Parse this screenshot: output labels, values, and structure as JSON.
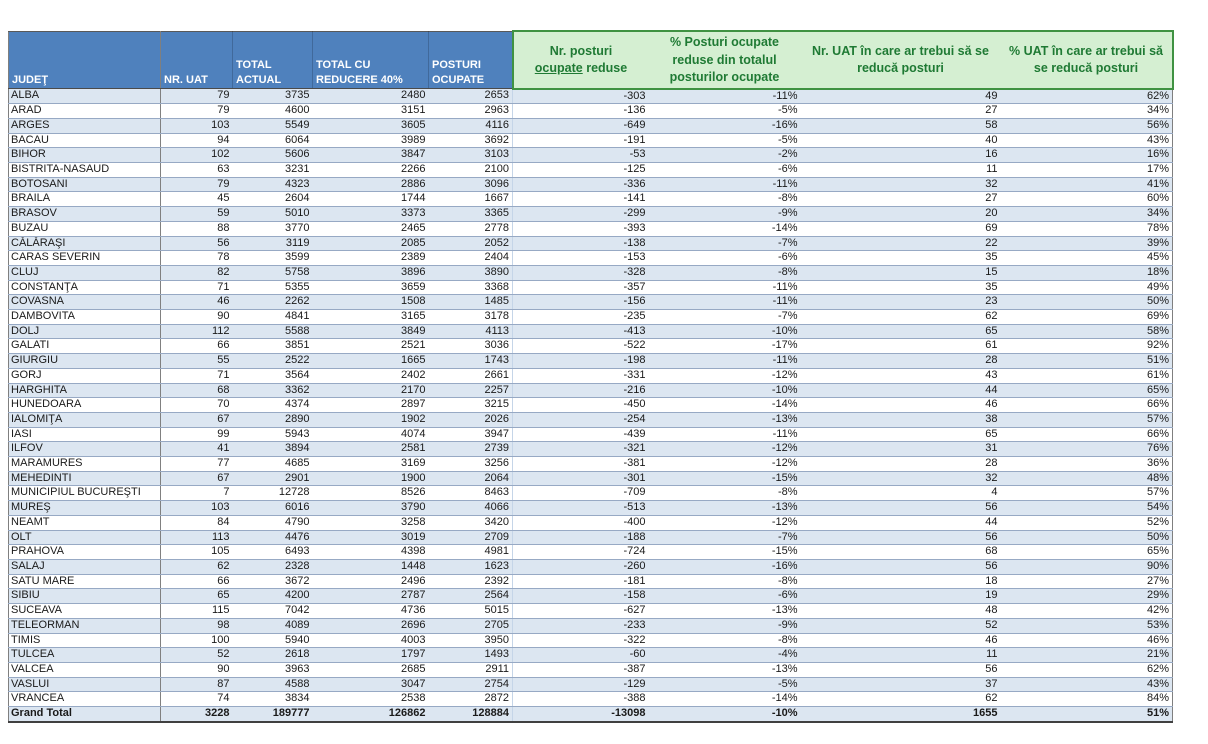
{
  "header": {
    "judet": "JUDEŢ",
    "nr_uat": "NR. UAT",
    "total_actual": "TOTAL\nACTUAL",
    "total_cu_reducere": "TOTAL CU\nREDUCERE 40%",
    "posturi_ocupate": "POSTURI\nOCUPATE",
    "nr_posturi_reduse": {
      "line1": "Nr. posturi",
      "underlined": "ocupate",
      "rest": "reduse"
    },
    "pct_posturi_reduse": "% Posturi ocupate reduse din totalul posturilor ocupate",
    "nr_uat_reduce": "Nr. UAT în care ar trebui să se reducă posturi",
    "pct_uat_reduce": "% UAT în care ar trebui să se reducă posturi"
  },
  "colors": {
    "header_blue": "#4F81BD",
    "stripe_blue": "#DCE6F1",
    "green_background": "#D5EFD2",
    "green_text": "#1F7A34",
    "green_border": "#3F9242"
  },
  "rows": [
    [
      "ALBA",
      "79",
      "3735",
      "2480",
      "2653",
      "-303",
      "-11%",
      "49",
      "62%"
    ],
    [
      "ARAD",
      "79",
      "4600",
      "3151",
      "2963",
      "-136",
      "-5%",
      "27",
      "34%"
    ],
    [
      "ARGES",
      "103",
      "5549",
      "3605",
      "4116",
      "-649",
      "-16%",
      "58",
      "56%"
    ],
    [
      "BACAU",
      "94",
      "6064",
      "3989",
      "3692",
      "-191",
      "-5%",
      "40",
      "43%"
    ],
    [
      "BIHOR",
      "102",
      "5606",
      "3847",
      "3103",
      "-53",
      "-2%",
      "16",
      "16%"
    ],
    [
      "BISTRITA-NASAUD",
      "63",
      "3231",
      "2266",
      "2100",
      "-125",
      "-6%",
      "11",
      "17%"
    ],
    [
      "BOTOSANI",
      "79",
      "4323",
      "2886",
      "3096",
      "-336",
      "-11%",
      "32",
      "41%"
    ],
    [
      "BRAILA",
      "45",
      "2604",
      "1744",
      "1667",
      "-141",
      "-8%",
      "27",
      "60%"
    ],
    [
      "BRASOV",
      "59",
      "5010",
      "3373",
      "3365",
      "-299",
      "-9%",
      "20",
      "34%"
    ],
    [
      "BUZAU",
      "88",
      "3770",
      "2465",
      "2778",
      "-393",
      "-14%",
      "69",
      "78%"
    ],
    [
      "CĂLĂRAŞI",
      "56",
      "3119",
      "2085",
      "2052",
      "-138",
      "-7%",
      "22",
      "39%"
    ],
    [
      "CARAS SEVERIN",
      "78",
      "3599",
      "2389",
      "2404",
      "-153",
      "-6%",
      "35",
      "45%"
    ],
    [
      "CLUJ",
      "82",
      "5758",
      "3896",
      "3890",
      "-328",
      "-8%",
      "15",
      "18%"
    ],
    [
      "CONSTANŢA",
      "71",
      "5355",
      "3659",
      "3368",
      "-357",
      "-11%",
      "35",
      "49%"
    ],
    [
      "COVASNA",
      "46",
      "2262",
      "1508",
      "1485",
      "-156",
      "-11%",
      "23",
      "50%"
    ],
    [
      "DAMBOVITA",
      "90",
      "4841",
      "3165",
      "3178",
      "-235",
      "-7%",
      "62",
      "69%"
    ],
    [
      "DOLJ",
      "112",
      "5588",
      "3849",
      "4113",
      "-413",
      "-10%",
      "65",
      "58%"
    ],
    [
      "GALATI",
      "66",
      "3851",
      "2521",
      "3036",
      "-522",
      "-17%",
      "61",
      "92%"
    ],
    [
      "GIURGIU",
      "55",
      "2522",
      "1665",
      "1743",
      "-198",
      "-11%",
      "28",
      "51%"
    ],
    [
      "GORJ",
      "71",
      "3564",
      "2402",
      "2661",
      "-331",
      "-12%",
      "43",
      "61%"
    ],
    [
      "HARGHITA",
      "68",
      "3362",
      "2170",
      "2257",
      "-216",
      "-10%",
      "44",
      "65%"
    ],
    [
      "HUNEDOARA",
      "70",
      "4374",
      "2897",
      "3215",
      "-450",
      "-14%",
      "46",
      "66%"
    ],
    [
      "IALOMIŢA",
      "67",
      "2890",
      "1902",
      "2026",
      "-254",
      "-13%",
      "38",
      "57%"
    ],
    [
      "IASI",
      "99",
      "5943",
      "4074",
      "3947",
      "-439",
      "-11%",
      "65",
      "66%"
    ],
    [
      "ILFOV",
      "41",
      "3894",
      "2581",
      "2739",
      "-321",
      "-12%",
      "31",
      "76%"
    ],
    [
      "MARAMURES",
      "77",
      "4685",
      "3169",
      "3256",
      "-381",
      "-12%",
      "28",
      "36%"
    ],
    [
      "MEHEDINTI",
      "67",
      "2901",
      "1900",
      "2064",
      "-301",
      "-15%",
      "32",
      "48%"
    ],
    [
      "MUNICIPIUL BUCUREŞTI",
      "7",
      "12728",
      "8526",
      "8463",
      "-709",
      "-8%",
      "4",
      "57%"
    ],
    [
      "MUREŞ",
      "103",
      "6016",
      "3790",
      "4066",
      "-513",
      "-13%",
      "56",
      "54%"
    ],
    [
      "NEAMT",
      "84",
      "4790",
      "3258",
      "3420",
      "-400",
      "-12%",
      "44",
      "52%"
    ],
    [
      "OLT",
      "113",
      "4476",
      "3019",
      "2709",
      "-188",
      "-7%",
      "56",
      "50%"
    ],
    [
      "PRAHOVA",
      "105",
      "6493",
      "4398",
      "4981",
      "-724",
      "-15%",
      "68",
      "65%"
    ],
    [
      "SALAJ",
      "62",
      "2328",
      "1448",
      "1623",
      "-260",
      "-16%",
      "56",
      "90%"
    ],
    [
      "SATU MARE",
      "66",
      "3672",
      "2496",
      "2392",
      "-181",
      "-8%",
      "18",
      "27%"
    ],
    [
      "SIBIU",
      "65",
      "4200",
      "2787",
      "2564",
      "-158",
      "-6%",
      "19",
      "29%"
    ],
    [
      "SUCEAVA",
      "115",
      "7042",
      "4736",
      "5015",
      "-627",
      "-13%",
      "48",
      "42%"
    ],
    [
      "TELEORMAN",
      "98",
      "4089",
      "2696",
      "2705",
      "-233",
      "-9%",
      "52",
      "53%"
    ],
    [
      "TIMIS",
      "100",
      "5940",
      "4003",
      "3950",
      "-322",
      "-8%",
      "46",
      "46%"
    ],
    [
      "TULCEA",
      "52",
      "2618",
      "1797",
      "1493",
      "-60",
      "-4%",
      "11",
      "21%"
    ],
    [
      "VALCEA",
      "90",
      "3963",
      "2685",
      "2911",
      "-387",
      "-13%",
      "56",
      "62%"
    ],
    [
      "VASLUI",
      "87",
      "4588",
      "3047",
      "2754",
      "-129",
      "-5%",
      "37",
      "43%"
    ],
    [
      "VRANCEA",
      "74",
      "3834",
      "2538",
      "2872",
      "-388",
      "-14%",
      "62",
      "84%"
    ]
  ],
  "grand_total": [
    "Grand Total",
    "3228",
    "189777",
    "126862",
    "128884",
    "-13098",
    "-10%",
    "1655",
    "51%"
  ]
}
